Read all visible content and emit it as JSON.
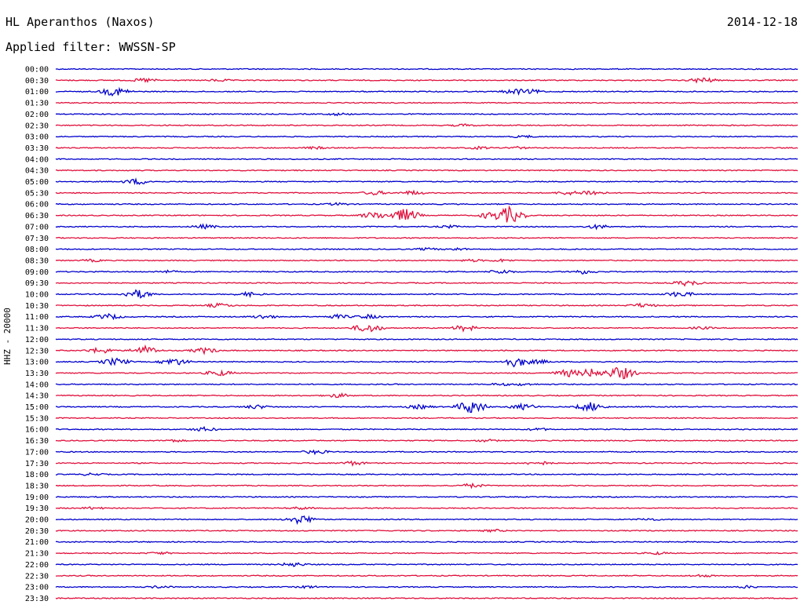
{
  "header": {
    "station": "HL Aperanthos (Naxos)",
    "filter": "Applied filter: WWSSN-SP",
    "date": "2014-12-18",
    "channel": "HHZ - 20000"
  },
  "colors": {
    "blue_trace": "#0000cc",
    "red_trace": "#e0103c"
  },
  "chart_data": {
    "type": "line",
    "title": "HL Aperanthos (Naxos)",
    "subtitle": "Applied filter: WWSSN-SP",
    "ylabel": "HHZ - 20000",
    "date": "2014-12-18",
    "traces": [
      {
        "label": "00:00",
        "color": "blue",
        "events": []
      },
      {
        "label": "00:30",
        "color": "red",
        "events": [
          [
            0.12,
            3
          ],
          [
            0.22,
            2
          ],
          [
            0.87,
            4
          ]
        ]
      },
      {
        "label": "01:00",
        "color": "blue",
        "events": [
          [
            0.08,
            6
          ],
          [
            0.62,
            4
          ],
          [
            0.64,
            3
          ]
        ]
      },
      {
        "label": "01:30",
        "color": "red",
        "events": []
      },
      {
        "label": "02:00",
        "color": "blue",
        "events": [
          [
            0.38,
            2
          ]
        ]
      },
      {
        "label": "02:30",
        "color": "red",
        "events": [
          [
            0.55,
            2
          ]
        ]
      },
      {
        "label": "03:00",
        "color": "blue",
        "events": [
          [
            0.63,
            2
          ]
        ]
      },
      {
        "label": "03:30",
        "color": "red",
        "events": [
          [
            0.35,
            2
          ],
          [
            0.57,
            2
          ],
          [
            0.62,
            2
          ]
        ]
      },
      {
        "label": "04:00",
        "color": "blue",
        "events": []
      },
      {
        "label": "04:30",
        "color": "red",
        "events": []
      },
      {
        "label": "05:00",
        "color": "blue",
        "events": [
          [
            0.11,
            4
          ]
        ]
      },
      {
        "label": "05:30",
        "color": "red",
        "events": [
          [
            0.43,
            3
          ],
          [
            0.48,
            3
          ],
          [
            0.69,
            3
          ],
          [
            0.72,
            4
          ]
        ]
      },
      {
        "label": "06:00",
        "color": "blue",
        "events": [
          [
            0.38,
            2
          ]
        ]
      },
      {
        "label": "06:30",
        "color": "red",
        "events": [
          [
            0.43,
            5
          ],
          [
            0.47,
            9
          ],
          [
            0.59,
            6
          ],
          [
            0.61,
            11
          ]
        ]
      },
      {
        "label": "07:00",
        "color": "blue",
        "events": [
          [
            0.2,
            3
          ],
          [
            0.53,
            2
          ],
          [
            0.73,
            3
          ]
        ]
      },
      {
        "label": "07:30",
        "color": "red",
        "events": []
      },
      {
        "label": "08:00",
        "color": "blue",
        "events": [
          [
            0.5,
            2
          ],
          [
            0.54,
            2
          ]
        ]
      },
      {
        "label": "08:30",
        "color": "red",
        "events": [
          [
            0.05,
            2
          ],
          [
            0.56,
            2
          ],
          [
            0.6,
            2
          ]
        ]
      },
      {
        "label": "09:00",
        "color": "blue",
        "events": [
          [
            0.15,
            2
          ],
          [
            0.6,
            3
          ],
          [
            0.71,
            3
          ]
        ]
      },
      {
        "label": "09:30",
        "color": "red",
        "events": [
          [
            0.85,
            4
          ]
        ]
      },
      {
        "label": "10:00",
        "color": "blue",
        "events": [
          [
            0.11,
            6
          ],
          [
            0.26,
            3
          ],
          [
            0.84,
            4
          ]
        ]
      },
      {
        "label": "10:30",
        "color": "red",
        "events": [
          [
            0.22,
            3
          ],
          [
            0.79,
            3
          ]
        ]
      },
      {
        "label": "11:00",
        "color": "blue",
        "events": [
          [
            0.07,
            4
          ],
          [
            0.28,
            3
          ],
          [
            0.38,
            3
          ],
          [
            0.42,
            3
          ]
        ]
      },
      {
        "label": "11:30",
        "color": "red",
        "events": [
          [
            0.42,
            6
          ],
          [
            0.55,
            4
          ],
          [
            0.87,
            2
          ]
        ]
      },
      {
        "label": "12:00",
        "color": "blue",
        "events": []
      },
      {
        "label": "12:30",
        "color": "red",
        "events": [
          [
            0.06,
            4
          ],
          [
            0.12,
            6
          ],
          [
            0.2,
            4
          ]
        ]
      },
      {
        "label": "13:00",
        "color": "blue",
        "events": [
          [
            0.08,
            5
          ],
          [
            0.16,
            5
          ],
          [
            0.62,
            7
          ],
          [
            0.65,
            3
          ]
        ]
      },
      {
        "label": "13:30",
        "color": "red",
        "events": [
          [
            0.22,
            4
          ],
          [
            0.69,
            5
          ],
          [
            0.72,
            6
          ],
          [
            0.76,
            9
          ]
        ]
      },
      {
        "label": "14:00",
        "color": "blue",
        "events": [
          [
            0.6,
            2
          ],
          [
            0.63,
            2
          ]
        ]
      },
      {
        "label": "14:30",
        "color": "red",
        "events": [
          [
            0.38,
            3
          ]
        ]
      },
      {
        "label": "15:00",
        "color": "blue",
        "events": [
          [
            0.27,
            3
          ],
          [
            0.49,
            3
          ],
          [
            0.56,
            9
          ],
          [
            0.63,
            4
          ],
          [
            0.72,
            6
          ]
        ]
      },
      {
        "label": "15:30",
        "color": "red",
        "events": []
      },
      {
        "label": "16:00",
        "color": "blue",
        "events": [
          [
            0.2,
            3
          ],
          [
            0.65,
            2
          ]
        ]
      },
      {
        "label": "16:30",
        "color": "red",
        "events": [
          [
            0.16,
            2
          ],
          [
            0.58,
            2
          ]
        ]
      },
      {
        "label": "17:00",
        "color": "blue",
        "events": [
          [
            0.35,
            3
          ]
        ]
      },
      {
        "label": "17:30",
        "color": "red",
        "events": [
          [
            0.4,
            3
          ],
          [
            0.65,
            3
          ]
        ]
      },
      {
        "label": "18:00",
        "color": "blue",
        "events": [
          [
            0.05,
            2
          ]
        ]
      },
      {
        "label": "18:30",
        "color": "red",
        "events": [
          [
            0.56,
            3
          ]
        ]
      },
      {
        "label": "19:00",
        "color": "blue",
        "events": []
      },
      {
        "label": "19:30",
        "color": "red",
        "events": [
          [
            0.05,
            2
          ],
          [
            0.33,
            2
          ]
        ]
      },
      {
        "label": "20:00",
        "color": "blue",
        "events": [
          [
            0.33,
            6
          ],
          [
            0.8,
            2
          ]
        ]
      },
      {
        "label": "20:30",
        "color": "red",
        "events": [
          [
            0.59,
            2
          ]
        ]
      },
      {
        "label": "21:00",
        "color": "blue",
        "events": []
      },
      {
        "label": "21:30",
        "color": "red",
        "events": [
          [
            0.14,
            2
          ],
          [
            0.81,
            2
          ]
        ]
      },
      {
        "label": "22:00",
        "color": "blue",
        "events": [
          [
            0.32,
            3
          ]
        ]
      },
      {
        "label": "22:30",
        "color": "red",
        "events": [
          [
            0.87,
            2
          ]
        ]
      },
      {
        "label": "23:00",
        "color": "blue",
        "events": [
          [
            0.14,
            2
          ],
          [
            0.34,
            2
          ],
          [
            0.93,
            2
          ]
        ]
      },
      {
        "label": "23:30",
        "color": "red",
        "events": []
      }
    ]
  }
}
